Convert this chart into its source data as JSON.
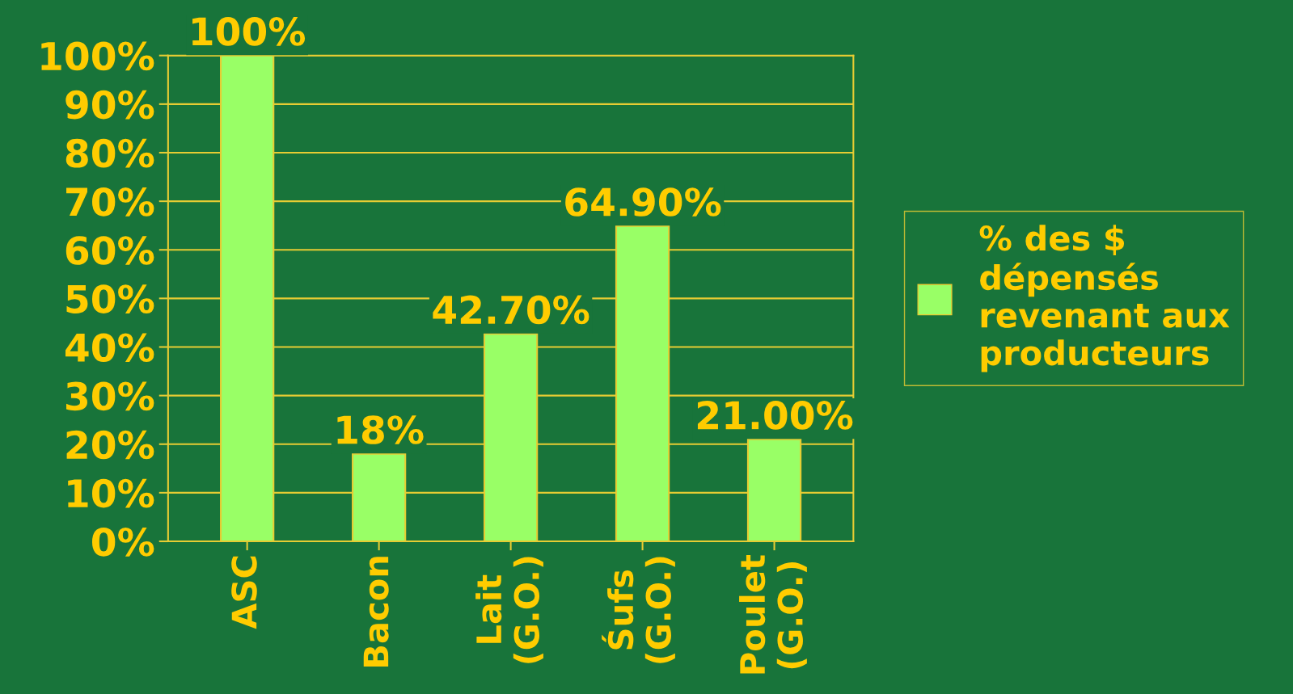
{
  "chart_data": {
    "type": "bar",
    "categories": [
      "ASC",
      "Bacon",
      "Lait\n(G.O.)",
      "Śufs\n(G.O.)",
      "Poulet\n(G.O.)"
    ],
    "series": [
      {
        "name": "% des $\ndépensés\nrevenant aux\nproducteurs",
        "color": "#99ff66",
        "values": [
          100,
          18,
          42.7,
          64.9,
          21.0
        ],
        "value_labels": [
          "100%",
          "18%",
          "42.70%",
          "64.90%",
          "21.00%"
        ]
      }
    ],
    "ylim": [
      0,
      100
    ],
    "yticks": [
      {
        "value": 0,
        "label": "0%"
      },
      {
        "value": 10,
        "label": "10%"
      },
      {
        "value": 20,
        "label": "20%"
      },
      {
        "value": 30,
        "label": "30%"
      },
      {
        "value": 40,
        "label": "40%"
      },
      {
        "value": 50,
        "label": "50%"
      },
      {
        "value": 60,
        "label": "60%"
      },
      {
        "value": 70,
        "label": "70%"
      },
      {
        "value": 80,
        "label": "80%"
      },
      {
        "value": 90,
        "label": "90%"
      },
      {
        "value": 100,
        "label": "100%"
      }
    ],
    "grid": "y",
    "legend": "right"
  }
}
